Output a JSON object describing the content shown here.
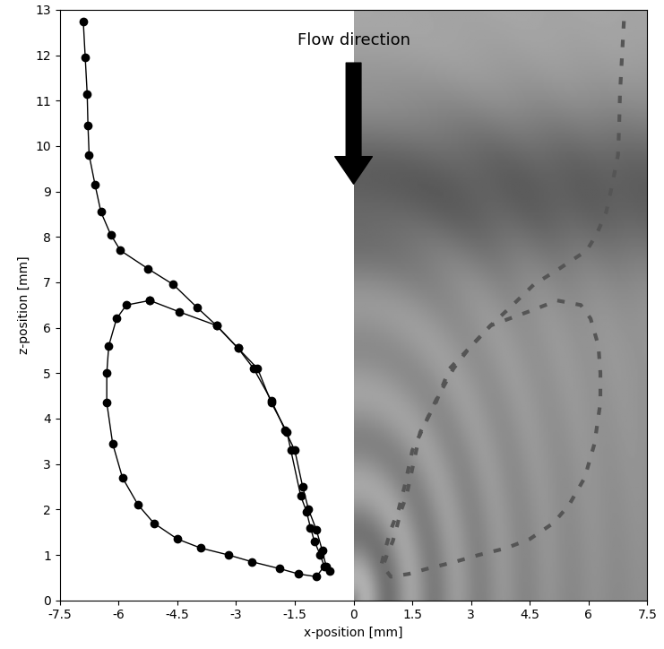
{
  "chart_data": {
    "type": "line",
    "xlabel": "x-position [mm]",
    "ylabel": "z-position [mm]",
    "annotation": "Flow direction",
    "xlim": [
      -7.5,
      7.5
    ],
    "xticks": [
      -7.5,
      -6,
      -4.5,
      -3,
      -1.5,
      0,
      1.5,
      3,
      4.5,
      6,
      7.5
    ],
    "ylim": [
      0,
      13
    ],
    "yticks": [
      0,
      1,
      2,
      3,
      4,
      5,
      6,
      7,
      8,
      9,
      10,
      11,
      12,
      13
    ],
    "grid": false,
    "marker": "o",
    "line_style": "solid",
    "color": "#000000",
    "series": [
      {
        "x": [
          -6.9,
          -6.85,
          -6.8,
          -6.78,
          -6.75,
          -6.6,
          -6.45,
          -6.2,
          -5.95,
          -5.25,
          -4.6,
          -4.0,
          -3.5,
          -2.95,
          -2.55,
          -2.1,
          -1.75,
          -1.5,
          -1.3,
          -1.15,
          -0.95,
          -0.8,
          -0.7,
          -0.6
        ],
        "y": [
          12.75,
          11.95,
          11.15,
          10.45,
          9.8,
          9.15,
          8.55,
          8.05,
          7.7,
          7.3,
          6.95,
          6.45,
          6.05,
          5.55,
          5.1,
          4.4,
          3.75,
          3.3,
          2.5,
          2.0,
          1.55,
          1.1,
          0.75,
          0.65
        ]
      },
      {
        "x": [
          -5.2,
          -5.8,
          -6.05,
          -6.25,
          -6.3,
          -6.3,
          -6.15,
          -5.9,
          -5.5,
          -5.1,
          -4.5,
          -3.9,
          -3.2,
          -2.6,
          -1.9,
          -1.4,
          -0.95,
          -0.75,
          -0.85,
          -1.0,
          -1.1,
          -1.2,
          -1.35,
          -1.6,
          -1.7,
          -2.1,
          -2.45,
          -2.95,
          -3.5,
          -4.45,
          -5.2
        ],
        "y": [
          6.6,
          6.5,
          6.2,
          5.6,
          5.0,
          4.35,
          3.45,
          2.7,
          2.1,
          1.7,
          1.35,
          1.15,
          1.0,
          0.85,
          0.7,
          0.58,
          0.52,
          0.75,
          1.0,
          1.3,
          1.6,
          1.95,
          2.3,
          3.3,
          3.7,
          4.35,
          5.1,
          5.55,
          6.05,
          6.35,
          6.6
        ]
      }
    ]
  }
}
